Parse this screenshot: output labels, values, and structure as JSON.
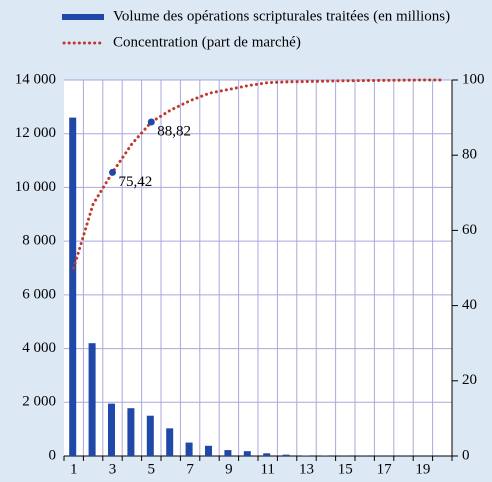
{
  "chart_data": {
    "type": "bar",
    "categories": [
      "1",
      null,
      "3",
      null,
      "5",
      null,
      "7",
      null,
      "9",
      null,
      "11",
      null,
      "13",
      null,
      "15",
      null,
      "17",
      null,
      "19",
      null
    ],
    "series": [
      {
        "name": "Volume des opérations scripturales traitées (en millions)",
        "type": "bar",
        "color": "#1f48a8",
        "values": [
          12600,
          4200,
          1950,
          1780,
          1500,
          1030,
          500,
          380,
          220,
          180,
          100,
          50,
          20,
          10,
          5,
          5,
          3,
          2,
          1,
          1
        ]
      },
      {
        "name": "Concentration (part de marché)",
        "type": "line",
        "axis": "y2",
        "color": "#c0392b",
        "values": [
          50,
          67,
          75.42,
          83,
          88.82,
          92,
          94.5,
          96.5,
          97.5,
          98.5,
          99.3,
          99.5,
          99.6,
          99.7,
          99.8,
          99.85,
          99.9,
          99.95,
          100,
          100
        ],
        "value_labels": [
          null,
          null,
          "75,42",
          null,
          "88,82",
          null,
          null,
          null,
          null,
          null,
          null,
          null,
          null,
          null,
          null,
          null,
          null,
          null,
          null,
          null
        ]
      }
    ],
    "ylim": [
      0,
      14000
    ],
    "yticks": [
      0,
      {
        "value": 2000,
        "label": "2 000"
      },
      {
        "value": 4000,
        "label": "4 000"
      },
      {
        "value": 6000,
        "label": "6 000"
      },
      {
        "value": 8000,
        "label": "8 000"
      },
      {
        "value": 10000,
        "label": "10 000"
      },
      {
        "value": 12000,
        "label": "12 000"
      },
      {
        "value": 14000,
        "label": "14 000"
      }
    ],
    "y2lim": [
      0,
      100
    ],
    "y2ticks": [
      0,
      20,
      40,
      60,
      80,
      100
    ],
    "grid": true,
    "legend": "top"
  }
}
